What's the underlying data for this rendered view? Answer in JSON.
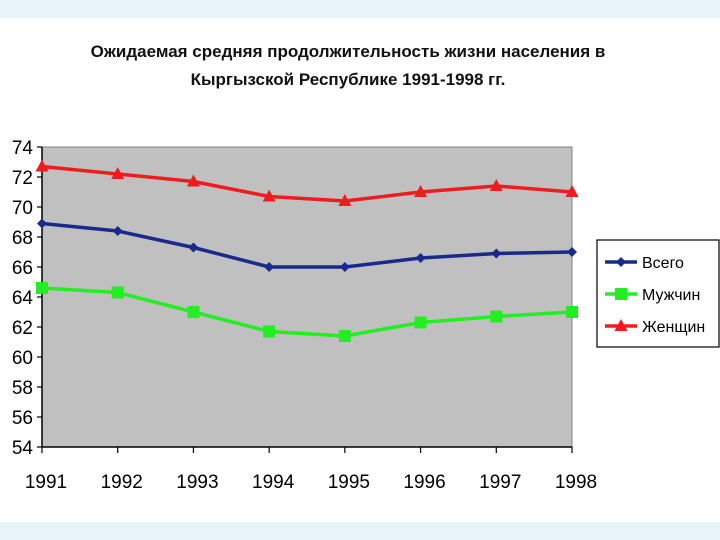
{
  "chart_data": {
    "type": "line",
    "title_line1": "Ожидаемая средняя продолжительность жизни населения в",
    "title_line2": "Кыргызской Республике 1991-1998 гг.",
    "categories": [
      "1991",
      "1992",
      "1993",
      "1994",
      "1995",
      "1996",
      "1997",
      "1998"
    ],
    "ylim": [
      54,
      74
    ],
    "yticks": [
      54,
      56,
      58,
      60,
      62,
      64,
      66,
      68,
      70,
      72,
      74
    ],
    "grid": false,
    "legend_position": "right",
    "plot_background": "#c0c0c0",
    "series": [
      {
        "name": "Всего",
        "color": "#1a2a8c",
        "marker": "diamond",
        "values": [
          68.9,
          68.4,
          67.3,
          66.0,
          66.0,
          66.6,
          66.9,
          67.0
        ]
      },
      {
        "name": "Мужчин",
        "color": "#22ee22",
        "marker": "square",
        "values": [
          64.6,
          64.3,
          63.0,
          61.7,
          61.4,
          62.3,
          62.7,
          63.0
        ]
      },
      {
        "name": "Женщин",
        "color": "#ee1c1c",
        "marker": "triangle",
        "values": [
          72.7,
          72.2,
          71.7,
          70.7,
          70.4,
          71.0,
          71.4,
          71.0
        ]
      }
    ]
  }
}
